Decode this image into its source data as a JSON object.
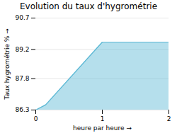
{
  "chart_data": {
    "type": "area",
    "title": "Evolution du taux d'hygrométrie",
    "xlabel": "heure par heure",
    "ylabel": "Taux hygrométrie %",
    "x": [
      0,
      0.15,
      1.0,
      2.0
    ],
    "values": [
      86.3,
      86.55,
      89.55,
      89.55
    ],
    "color": "#5bb8d4",
    "xlim": [
      0,
      2
    ],
    "ylim": [
      86.3,
      90.7
    ],
    "xticks": [
      0,
      1,
      2
    ],
    "yticks": [
      86.3,
      87.8,
      89.2,
      90.7
    ],
    "grid": true
  }
}
